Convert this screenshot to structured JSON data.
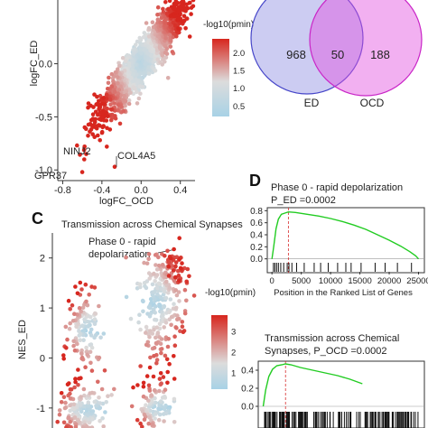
{
  "panels": {
    "C_letter": "C",
    "D_letter": "D"
  },
  "chart_data": [
    {
      "id": "scatter_A",
      "type": "scatter",
      "xlabel": "logFC_OCD",
      "ylabel": "logFC_ED",
      "xticks": [
        "-0.8",
        "-0.4",
        "0.0",
        "0.4"
      ],
      "xtick_values": [
        -0.8,
        -0.4,
        0.0,
        0.4
      ],
      "yticks": [
        "0.0",
        "-0.5",
        "-1.0"
      ],
      "ytick_values": [
        0.0,
        -0.5,
        -1.0
      ],
      "xlim": [
        -0.85,
        0.55
      ],
      "ylim": [
        -1.1,
        0.6
      ],
      "colorbar_title": "-log10(pmin)",
      "colorbar_ticks": [
        "2.0",
        "1.5",
        "1.0",
        "0.5"
      ],
      "colorbar_tick_values": [
        2.0,
        1.5,
        1.0,
        0.5
      ],
      "colorbar_range": [
        0.2,
        2.4
      ],
      "colors": {
        "low": "#a8d2e6",
        "mid": "#dcdcdc",
        "high": "#d7261e"
      },
      "labels": [
        {
          "text": "NINJ2",
          "x": -0.56,
          "y": -0.93
        },
        {
          "text": "COL4A5",
          "x": -0.27,
          "y": -0.96
        },
        {
          "text": "GPR37",
          "x": -0.6,
          "y": -1.05
        }
      ],
      "points_seed": 11,
      "points_count": 1500
    },
    {
      "id": "venn_B",
      "type": "venn",
      "sets": [
        {
          "name": "ED",
          "only": 968,
          "color": "#6e6edb"
        },
        {
          "name": "OCD",
          "only": 188,
          "color": "#e24fe0"
        }
      ],
      "overlap": 50
    },
    {
      "id": "scatter_C",
      "type": "scatter",
      "title": "Transmission across Chemical Synapses",
      "annotation": "Phase 0 - rapid depolarization",
      "ylabel": "NES_ED",
      "yticks": [
        "2",
        "1",
        "0",
        "-1"
      ],
      "ytick_values": [
        2,
        1,
        0,
        -1
      ],
      "ylim": [
        -1.4,
        2.5
      ],
      "colorbar_title": "-log10(pmin)",
      "colorbar_ticks": [
        "3",
        "2",
        "1"
      ],
      "colorbar_tick_values": [
        3,
        2,
        1
      ],
      "colorbar_range": [
        0.2,
        3.8
      ],
      "colors": {
        "low": "#a8d2e6",
        "mid": "#dcdcdc",
        "high": "#d7261e"
      },
      "points_seed": 23
    },
    {
      "id": "gsea_D1",
      "type": "line",
      "title_line1": "Phase 0 - rapid depolarization",
      "title_line2": "P_ED =0.0002",
      "xlabel": "Position in the Ranked List of Genes",
      "xticks": [
        "0",
        "5000",
        "10000",
        "15000",
        "20000",
        "25000"
      ],
      "xtick_values": [
        0,
        5000,
        10000,
        15000,
        20000,
        25000
      ],
      "yticks": [
        "0.8",
        "0.6",
        "0.4",
        "0.2",
        "0.0"
      ],
      "ytick_values": [
        0.8,
        0.6,
        0.4,
        0.2,
        0.0
      ],
      "xlim": [
        -800,
        26000
      ],
      "ylim": [
        -0.05,
        0.85
      ],
      "peak_x": 2800,
      "line_color": "#22cc22",
      "curve": [
        [
          0,
          0.0
        ],
        [
          300,
          0.2
        ],
        [
          700,
          0.5
        ],
        [
          1100,
          0.66
        ],
        [
          1600,
          0.74
        ],
        [
          2200,
          0.76
        ],
        [
          2800,
          0.78
        ],
        [
          4000,
          0.77
        ],
        [
          6000,
          0.74
        ],
        [
          8000,
          0.71
        ],
        [
          10000,
          0.67
        ],
        [
          12000,
          0.62
        ],
        [
          14000,
          0.56
        ],
        [
          16000,
          0.49
        ],
        [
          18000,
          0.4
        ],
        [
          20000,
          0.31
        ],
        [
          22000,
          0.21
        ],
        [
          23500,
          0.12
        ],
        [
          24500,
          0.05
        ],
        [
          25000,
          0.0
        ]
      ],
      "hits": [
        250,
        500,
        800,
        1100,
        1500,
        2000,
        2600,
        2900,
        3400,
        4200,
        5500,
        7200,
        8300,
        9600,
        11200,
        12600,
        13500,
        15200,
        17600,
        19300,
        21400,
        23800
      ]
    },
    {
      "id": "gsea_D2",
      "type": "line",
      "title_line1": "Transmission across Chemical",
      "title_line2": "Synapses, P_OCD =0.0002",
      "yticks": [
        "0.4",
        "0.2",
        "0.0"
      ],
      "ytick_values": [
        0.4,
        0.2,
        0.0
      ],
      "xlim": [
        -800,
        26000
      ],
      "ylim": [
        -0.05,
        0.5
      ],
      "peak_x": 3600,
      "line_color": "#22cc22",
      "curve": [
        [
          0,
          0.0
        ],
        [
          400,
          0.18
        ],
        [
          900,
          0.33
        ],
        [
          1500,
          0.41
        ],
        [
          2200,
          0.45
        ],
        [
          3000,
          0.46
        ],
        [
          3600,
          0.47
        ],
        [
          4500,
          0.46
        ],
        [
          6000,
          0.43
        ],
        [
          8000,
          0.4
        ],
        [
          10000,
          0.37
        ],
        [
          12000,
          0.34
        ],
        [
          14000,
          0.3
        ],
        [
          16000,
          0.25
        ]
      ],
      "hits_count": 150
    }
  ]
}
